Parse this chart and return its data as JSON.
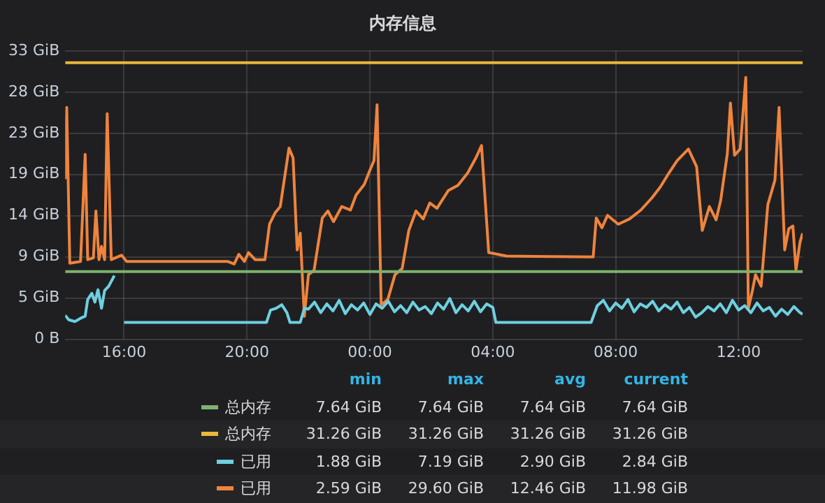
{
  "chart_data": {
    "type": "line",
    "title": "内存信息",
    "xlim": [
      "--01-01T14:05",
      "--01-02T14:05"
    ],
    "xticks": [
      {
        "value": "--01-01T16:00",
        "label": "16:00"
      },
      {
        "value": "--01-01T20:00",
        "label": "20:00"
      },
      {
        "value": "--01-02T00:00",
        "label": "00:00"
      },
      {
        "value": "--01-02T04:00",
        "label": "04:00"
      },
      {
        "value": "--01-02T08:00",
        "label": "08:00"
      },
      {
        "value": "--01-02T12:00",
        "label": "12:00"
      }
    ],
    "ylim": [
      0,
      32.6
    ],
    "yticks": [
      {
        "value": 0,
        "label": "0 B"
      },
      {
        "value": 4.66,
        "label": "5 GiB"
      },
      {
        "value": 9.31,
        "label": "9 GiB"
      },
      {
        "value": 13.97,
        "label": "14 GiB"
      },
      {
        "value": 18.63,
        "label": "19 GiB"
      },
      {
        "value": 23.28,
        "label": "23 GiB"
      },
      {
        "value": 27.94,
        "label": "28 GiB"
      },
      {
        "value": 32.6,
        "label": "33 GiB"
      }
    ],
    "grid": true,
    "legend": "bottom",
    "series": [
      {
        "name": "总内存",
        "color": "#7eb26d",
        "x": [
          "--01-01T14:05",
          "--01-02T14:05"
        ],
        "values": [
          7.64,
          7.64
        ]
      },
      {
        "name": "总内存",
        "color": "#eab839",
        "x": [
          "--01-01T14:05",
          "--01-02T14:05"
        ],
        "values": [
          31.26,
          31.26
        ]
      },
      {
        "name": "已用",
        "color": "#6ed0e0",
        "x": [
          "--01-01T14:05",
          "--01-01T14:12",
          "--01-01T14:24",
          "--01-01T14:36",
          "--01-01T14:44",
          "--01-01T14:49",
          "--01-01T14:57",
          "--01-01T15:03",
          "--01-01T15:09",
          "--01-01T15:16",
          "--01-01T15:22",
          "--01-01T15:30",
          "--01-01T15:41",
          "--01-01T15:51",
          "--01-01T16:00",
          "--01-01T20:38",
          "--01-01T20:46",
          "--01-01T20:57",
          "--01-01T21:08",
          "--01-01T21:18",
          "--01-01T21:24",
          "--01-01T21:44",
          "--01-01T21:52",
          "--01-01T22:00",
          "--01-01T22:12",
          "--01-01T22:24",
          "--01-01T22:36",
          "--01-01T22:48",
          "--01-01T23:00",
          "--01-01T23:12",
          "--01-01T23:24",
          "--01-01T23:36",
          "--01-01T23:48",
          "--01-02T00:00",
          "--01-02T00:12",
          "--01-02T00:24",
          "--01-02T00:36",
          "--01-02T00:48",
          "--01-02T01:00",
          "--01-02T01:12",
          "--01-02T01:24",
          "--01-02T01:36",
          "--01-02T01:48",
          "--01-02T02:00",
          "--01-02T02:12",
          "--01-02T02:24",
          "--01-02T02:36",
          "--01-02T02:48",
          "--01-02T03:00",
          "--01-02T03:12",
          "--01-02T03:24",
          "--01-02T03:36",
          "--01-02T03:48",
          "--01-02T04:00",
          "--01-02T04:06",
          "--01-02T07:12",
          "--01-02T07:24",
          "--01-02T07:36",
          "--01-02T07:48",
          "--01-02T08:00",
          "--01-02T08:12",
          "--01-02T08:24",
          "--01-02T08:36",
          "--01-02T08:48",
          "--01-02T09:00",
          "--01-02T09:12",
          "--01-02T09:24",
          "--01-02T09:36",
          "--01-02T09:48",
          "--01-02T10:00",
          "--01-02T10:12",
          "--01-02T10:24",
          "--01-02T10:36",
          "--01-02T10:48",
          "--01-02T11:00",
          "--01-02T11:12",
          "--01-02T11:24",
          "--01-02T11:36",
          "--01-02T11:48",
          "--01-02T12:00",
          "--01-02T12:12",
          "--01-02T12:24",
          "--01-02T12:36",
          "--01-02T12:48",
          "--01-02T13:00",
          "--01-02T13:12",
          "--01-02T13:24",
          "--01-02T13:36",
          "--01-02T13:48",
          "--01-02T14:00",
          "--01-02T14:05"
        ],
        "values": [
          2.7,
          2.2,
          2.0,
          2.4,
          2.6,
          4.5,
          5.2,
          4.2,
          5.6,
          3.5,
          5.5,
          6.0,
          7.19,
          null,
          1.9,
          1.9,
          3.3,
          3.5,
          3.9,
          3.0,
          1.9,
          1.9,
          3.5,
          3.4,
          4.2,
          3.0,
          4.0,
          3.2,
          4.4,
          2.9,
          3.9,
          3.3,
          4.1,
          2.8,
          4.0,
          3.5,
          4.3,
          3.1,
          3.8,
          3.0,
          4.2,
          3.3,
          3.7,
          2.9,
          4.1,
          3.4,
          4.6,
          3.0,
          3.9,
          3.2,
          4.3,
          3.1,
          4.0,
          3.6,
          1.9,
          1.9,
          3.8,
          4.4,
          3.2,
          4.1,
          3.5,
          4.5,
          3.1,
          4.0,
          3.6,
          4.3,
          3.2,
          3.9,
          3.4,
          4.2,
          3.0,
          3.6,
          2.5,
          3.0,
          3.7,
          3.2,
          4.0,
          3.0,
          4.4,
          3.3,
          3.8,
          3.0,
          4.1,
          3.2,
          3.6,
          2.6,
          3.4,
          2.8,
          3.7,
          3.0,
          2.84
        ]
      },
      {
        "name": "已用",
        "color": "#ef843c",
        "x": [
          "--01-01T14:05",
          "--01-01T14:08",
          "--01-01T14:14",
          "--01-01T14:35",
          "--01-01T14:44",
          "--01-01T14:49",
          "--01-01T15:00",
          "--01-01T15:05",
          "--01-01T15:11",
          "--01-01T15:16",
          "--01-01T15:22",
          "--01-01T15:27",
          "--01-01T15:35",
          "--01-01T15:55",
          "--01-01T16:05",
          "--01-01T19:22",
          "--01-01T19:35",
          "--01-01T19:44",
          "--01-01T19:55",
          "--01-01T20:03",
          "--01-01T20:16",
          "--01-01T20:35",
          "--01-01T20:44",
          "--01-01T20:55",
          "--01-01T21:05",
          "--01-01T21:22",
          "--01-01T21:30",
          "--01-01T21:38",
          "--01-01T21:44",
          "--01-01T21:52",
          "--01-01T22:00",
          "--01-01T22:11",
          "--01-01T22:27",
          "--01-01T22:38",
          "--01-01T22:49",
          "--01-01T23:05",
          "--01-01T23:22",
          "--01-01T23:33",
          "--01-01T23:49",
          "--01-02T00:00",
          "--01-02T00:08",
          "--01-02T00:14",
          "--01-02T00:22",
          "--01-02T00:35",
          "--01-02T00:49",
          "--01-02T01:03",
          "--01-02T01:16",
          "--01-02T01:30",
          "--01-02T01:44",
          "--01-02T01:57",
          "--01-02T02:11",
          "--01-02T02:33",
          "--01-02T02:52",
          "--01-02T03:11",
          "--01-02T03:27",
          "--01-02T03:38",
          "--01-02T03:52",
          "--01-02T04:27",
          "--01-02T07:16",
          "--01-02T07:22",
          "--01-02T07:33",
          "--01-02T07:44",
          "--01-02T08:05",
          "--01-02T08:27",
          "--01-02T08:49",
          "--01-02T09:11",
          "--01-02T09:27",
          "--01-02T09:44",
          "--01-02T10:00",
          "--01-02T10:22",
          "--01-02T10:38",
          "--01-02T10:49",
          "--01-02T11:03",
          "--01-02T11:16",
          "--01-02T11:25",
          "--01-02T11:38",
          "--01-02T11:44",
          "--01-02T11:52",
          "--01-02T12:03",
          "--01-02T12:14",
          "--01-02T12:19",
          "--01-02T12:27",
          "--01-02T12:33",
          "--01-02T12:44",
          "--01-02T12:57",
          "--01-02T13:11",
          "--01-02T13:19",
          "--01-02T13:30",
          "--01-02T13:38",
          "--01-02T13:46",
          "--01-02T13:52",
          "--01-02T14:00",
          "--01-02T14:05"
        ],
        "values": [
          18.1,
          26.2,
          8.6,
          8.8,
          20.9,
          9.0,
          9.2,
          14.5,
          9.0,
          10.5,
          9.0,
          25.5,
          9.0,
          9.5,
          8.8,
          8.8,
          8.5,
          9.6,
          8.8,
          9.8,
          9.0,
          9.0,
          13.0,
          14.3,
          15.0,
          21.6,
          20.5,
          10.1,
          12.0,
          2.59,
          7.3,
          7.8,
          13.7,
          14.5,
          13.3,
          15.0,
          14.6,
          16.3,
          17.5,
          19.1,
          20.2,
          26.5,
          3.9,
          4.5,
          7.3,
          8.0,
          12.3,
          14.5,
          13.6,
          15.4,
          14.8,
          16.8,
          17.4,
          18.8,
          20.5,
          21.9,
          9.8,
          9.4,
          9.3,
          13.7,
          12.6,
          14.0,
          13.0,
          13.6,
          14.6,
          16.0,
          17.2,
          18.8,
          20.2,
          21.5,
          19.5,
          12.3,
          15.0,
          13.5,
          15.7,
          21.0,
          26.7,
          20.8,
          21.5,
          29.6,
          3.5,
          5.5,
          7.3,
          6.0,
          15.2,
          18.0,
          26.2,
          10.1,
          12.5,
          12.8,
          7.8,
          11.0,
          11.98
        ]
      }
    ],
    "annotations": [
      "min",
      "max",
      "avg",
      "current",
      "7.64 GiB",
      "7.64 GiB",
      "7.64 GiB",
      "7.64 GiB",
      "31.26 GiB",
      "31.26 GiB",
      "31.26 GiB",
      "31.26 GiB",
      "1.88 GiB",
      "7.19 GiB",
      "2.90 GiB",
      "2.84 GiB",
      "2.59 GiB",
      "29.60 GiB",
      "12.46 GiB",
      "11.98 GiB"
    ]
  }
}
